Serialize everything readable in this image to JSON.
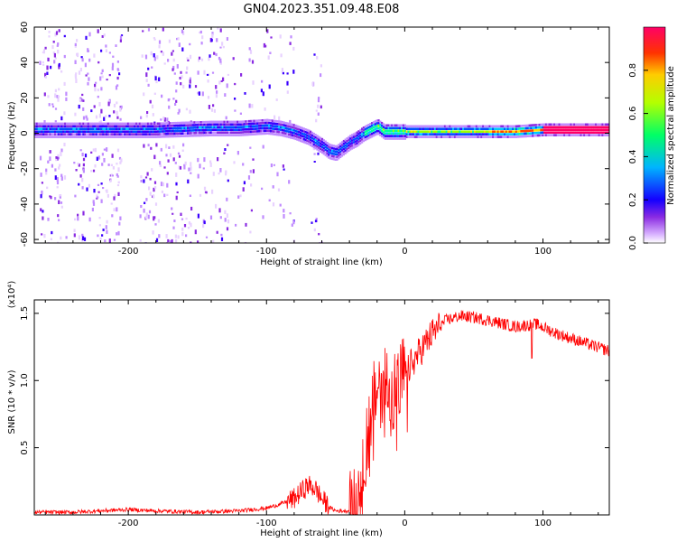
{
  "title": "GN04.2023.351.09.48.E08",
  "chart_data": [
    {
      "type": "heatmap",
      "xlabel": "Height of straight line (km)",
      "ylabel": "Frequency (Hz)",
      "xlim": [
        -268,
        148
      ],
      "ylim": [
        -62,
        60
      ],
      "xticks": [
        -200,
        -100,
        0,
        100
      ],
      "yticks": [
        -60,
        -40,
        -20,
        0,
        20,
        40,
        60
      ],
      "colorbar": {
        "label": "Normalized spectral amplitude",
        "range": [
          0,
          1
        ],
        "ticks": [
          0.0,
          0.2,
          0.4,
          0.6,
          0.8
        ],
        "colors": [
          "#ffffff",
          "#b36bff",
          "#1400ff",
          "#00aaff",
          "#00ff66",
          "#e0ff00",
          "#ff5500",
          "#ff0066"
        ]
      },
      "ridge": {
        "x": [
          -268,
          -220,
          -180,
          -140,
          -120,
          -100,
          -90,
          -80,
          -70,
          -60,
          -55,
          -50,
          -45,
          -40,
          -35,
          -30,
          -25,
          -20,
          -15,
          -10,
          0,
          20,
          50,
          80,
          100,
          148
        ],
        "y": [
          2,
          2,
          2,
          3,
          3,
          4,
          3,
          1,
          -2,
          -7,
          -10,
          -11,
          -8,
          -5,
          -3,
          0,
          2,
          4,
          1,
          1,
          1,
          1,
          1,
          1,
          2,
          2
        ]
      }
    },
    {
      "type": "line",
      "xlabel": "Height of straight line (km)",
      "ylabel": "SNR (10 * v/v)",
      "y_multiplier": "(x10⁴)",
      "xlim": [
        -268,
        148
      ],
      "ylim": [
        0,
        1.6
      ],
      "xticks": [
        -200,
        -100,
        0,
        100
      ],
      "yticks": [
        0.5,
        1.0,
        1.5
      ],
      "ytick_labels": [
        "0.5",
        "1.0",
        "1.5"
      ],
      "series": [
        {
          "color": "#ff0000",
          "x": [
            -268,
            -240,
            -200,
            -180,
            -150,
            -120,
            -100,
            -90,
            -80,
            -70,
            -65,
            -60,
            -55,
            -50,
            -45,
            -40,
            -35,
            -30,
            -25,
            -20,
            -15,
            -10,
            -5,
            0,
            10,
            20,
            30,
            40,
            50,
            60,
            80,
            95,
            110,
            130,
            148
          ],
          "y": [
            0.02,
            0.02,
            0.04,
            0.03,
            0.02,
            0.03,
            0.05,
            0.08,
            0.12,
            0.22,
            0.2,
            0.12,
            0.06,
            0.03,
            0.03,
            0.03,
            0.05,
            0.45,
            0.7,
            0.95,
            1.02,
            0.9,
            0.95,
            1.05,
            1.2,
            1.35,
            1.45,
            1.48,
            1.47,
            1.45,
            1.4,
            1.42,
            1.35,
            1.28,
            1.22
          ]
        }
      ]
    }
  ]
}
